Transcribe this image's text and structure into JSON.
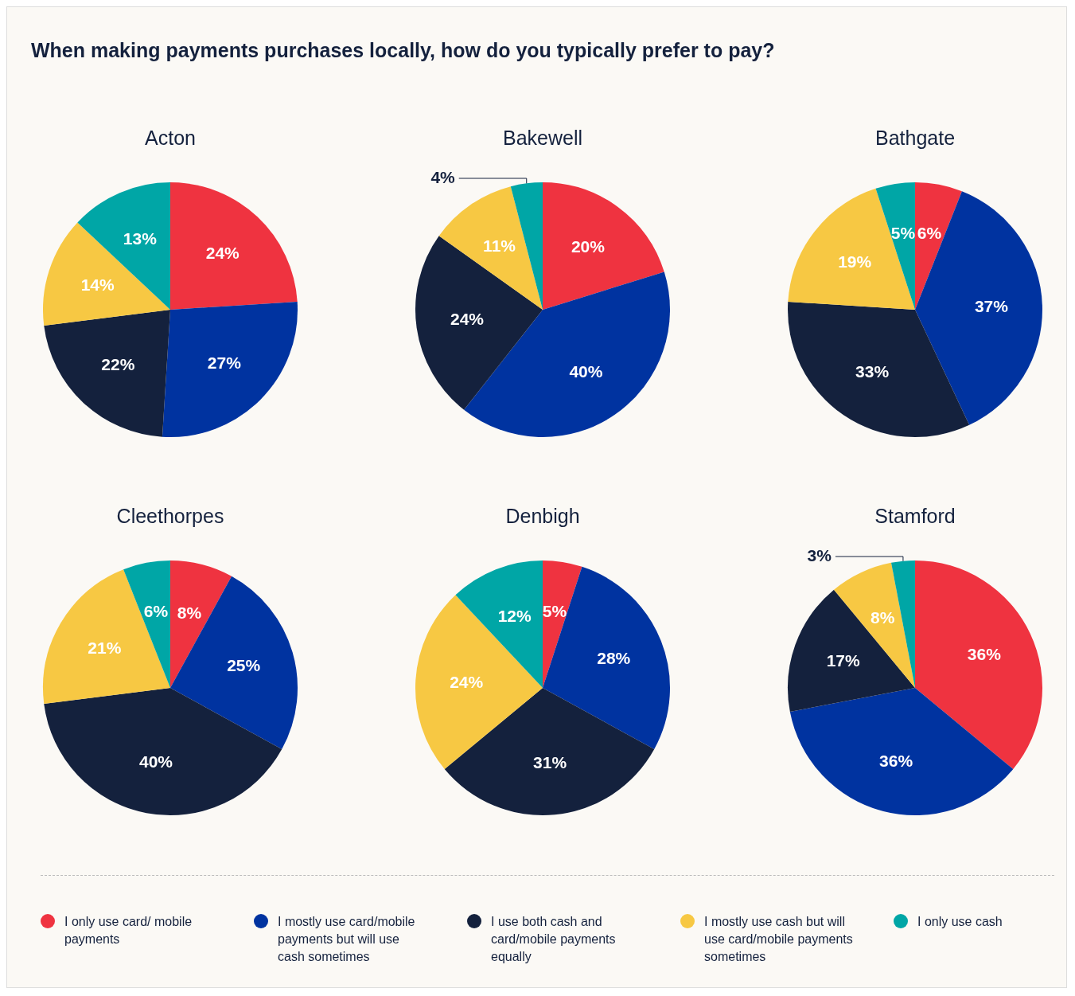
{
  "chart_data": [
    {
      "type": "pie",
      "title": "Acton",
      "annotations": [
        "When making payments purchases locally, how do you typically prefer to pay?"
      ],
      "legend": "bottom",
      "categories": [
        "I only use card/ mobile payments",
        "I mostly use card/mobile payments but will use cash sometimes",
        "I use both cash and card/mobile payments equally",
        "I mostly use cash but will use card/mobile payments sometimes",
        "I only use cash"
      ],
      "values": [
        24,
        27,
        22,
        14,
        13
      ],
      "value_labels": [
        "24%",
        "27%",
        "22%",
        "14%",
        "13%"
      ],
      "colors": [
        "#ef3340",
        "#0033a0",
        "#14213d",
        "#f7c843",
        "#00a6a6"
      ]
    },
    {
      "type": "pie",
      "title": "Bakewell",
      "categories": [
        null,
        null,
        null,
        null,
        null
      ],
      "values": [
        20,
        40,
        24,
        11,
        4
      ],
      "value_labels": [
        "20%",
        "40%",
        "24%",
        "11%",
        "4%"
      ],
      "colors": [
        "#ef3340",
        "#0033a0",
        "#14213d",
        "#f7c843",
        "#00a6a6"
      ]
    },
    {
      "type": "pie",
      "title": "Bathgate",
      "categories": [
        null,
        null,
        null,
        null,
        null
      ],
      "values": [
        6,
        37,
        33,
        19,
        5
      ],
      "value_labels": [
        "6%",
        "37%",
        "33%",
        "19%",
        "5%"
      ],
      "colors": [
        "#ef3340",
        "#0033a0",
        "#14213d",
        "#f7c843",
        "#00a6a6"
      ]
    },
    {
      "type": "pie",
      "title": "Cleethorpes",
      "categories": [
        null,
        null,
        null,
        null,
        null
      ],
      "values": [
        8,
        25,
        40,
        21,
        6
      ],
      "value_labels": [
        "8%",
        "25%",
        "40%",
        "21%",
        "6%"
      ],
      "colors": [
        "#ef3340",
        "#0033a0",
        "#14213d",
        "#f7c843",
        "#00a6a6"
      ]
    },
    {
      "type": "pie",
      "title": "Denbigh",
      "categories": [
        null,
        null,
        null,
        null,
        null
      ],
      "values": [
        5,
        28,
        31,
        24,
        12
      ],
      "value_labels": [
        "5%",
        "28%",
        "31%",
        "24%",
        "12%"
      ],
      "colors": [
        "#ef3340",
        "#0033a0",
        "#14213d",
        "#f7c843",
        "#00a6a6"
      ]
    },
    {
      "type": "pie",
      "title": "Stamford",
      "categories": [
        null,
        null,
        null,
        null,
        null
      ],
      "values": [
        36,
        36,
        17,
        8,
        3
      ],
      "value_labels": [
        "36%",
        "36%",
        "17%",
        "8%",
        "3%"
      ],
      "colors": [
        "#ef3340",
        "#0033a0",
        "#14213d",
        "#f7c843",
        "#00a6a6"
      ]
    }
  ]
}
